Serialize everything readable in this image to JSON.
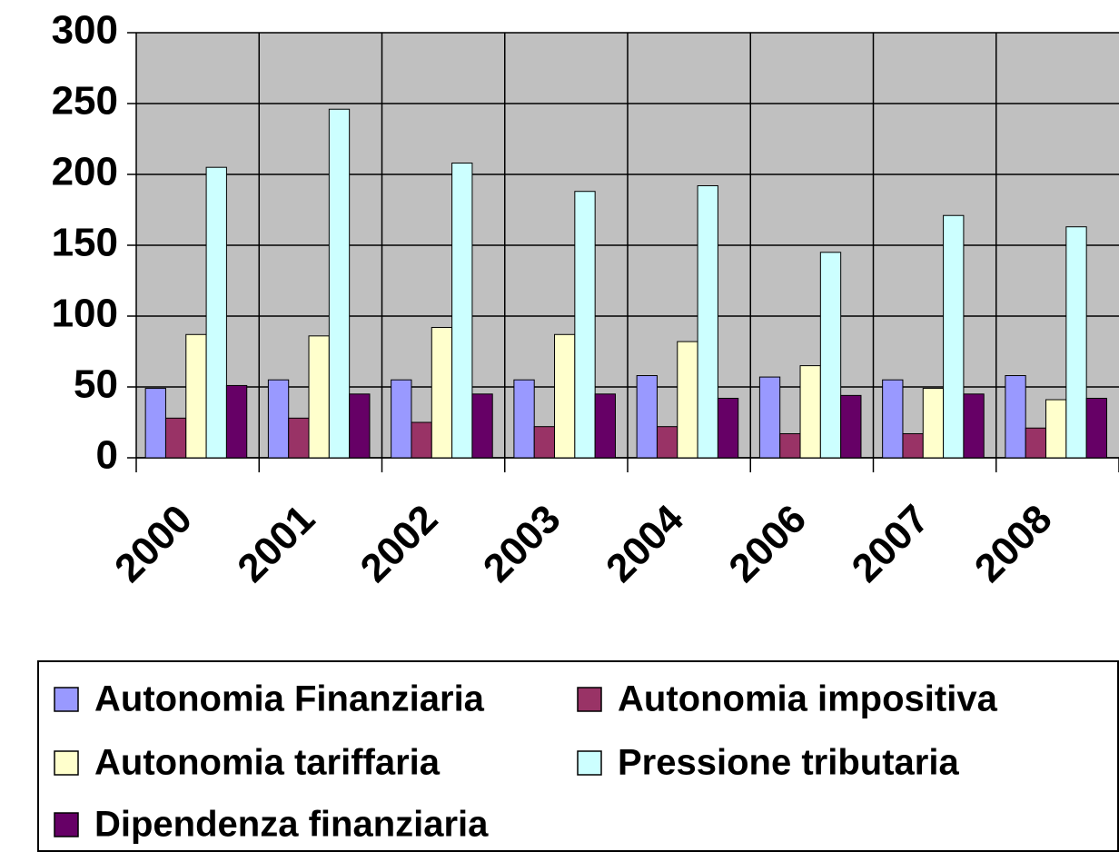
{
  "chart_data": {
    "type": "bar",
    "categories": [
      "2000",
      "2001",
      "2002",
      "2003",
      "2004",
      "2006",
      "2007",
      "2008"
    ],
    "series": [
      {
        "name": "Autonomia Finanziaria",
        "color": "#9999ff",
        "values": [
          49,
          55,
          55,
          55,
          58,
          57,
          55,
          58
        ]
      },
      {
        "name": "Autonomia impositiva",
        "color": "#993366",
        "values": [
          28,
          28,
          25,
          22,
          22,
          17,
          17,
          21
        ]
      },
      {
        "name": "Autonomia tariffaria",
        "color": "#ffffcc",
        "values": [
          87,
          86,
          92,
          87,
          82,
          65,
          49,
          41
        ]
      },
      {
        "name": "Pressione tributaria",
        "color": "#ccffff",
        "values": [
          205,
          246,
          208,
          188,
          192,
          145,
          171,
          163
        ]
      },
      {
        "name": "Dipendenza finanziaria",
        "color": "#660066",
        "values": [
          51,
          45,
          45,
          45,
          42,
          44,
          45,
          42
        ]
      }
    ],
    "ylim": [
      0,
      300
    ],
    "yticks": [
      0,
      50,
      100,
      150,
      200,
      250,
      300
    ],
    "grid": true,
    "legend": "bottom"
  }
}
